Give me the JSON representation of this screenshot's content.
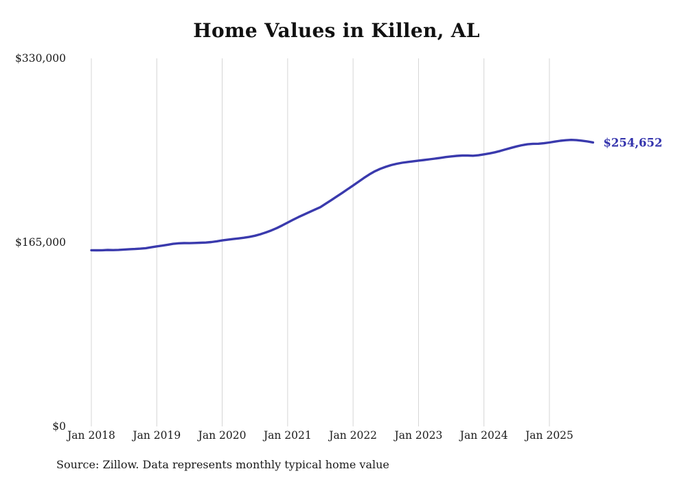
{
  "chart_data": {
    "type": "line",
    "title": "Home Values in Killen, AL",
    "x_start": "Jan 2018",
    "x_frequency": "monthly",
    "x_tick_labels": [
      "Jan 2018",
      "Jan 2019",
      "Jan 2020",
      "Jan 2021",
      "Jan 2022",
      "Jan 2023",
      "Jan 2024",
      "Jan 2025"
    ],
    "x_tick_month_indices": [
      0,
      12,
      24,
      36,
      48,
      60,
      72,
      84
    ],
    "values": [
      158000,
      157900,
      158000,
      158200,
      158100,
      158300,
      158600,
      158900,
      159100,
      159400,
      159800,
      160600,
      161400,
      162100,
      162900,
      163700,
      164200,
      164400,
      164300,
      164500,
      164700,
      164900,
      165300,
      166000,
      166800,
      167400,
      168000,
      168600,
      169200,
      170000,
      171000,
      172300,
      173900,
      175700,
      177800,
      180200,
      182800,
      185300,
      187700,
      190000,
      192200,
      194400,
      196600,
      199700,
      202900,
      206100,
      209400,
      212700,
      216000,
      219400,
      222800,
      226000,
      228800,
      231000,
      232800,
      234300,
      235500,
      236400,
      237100,
      237700,
      238300,
      238900,
      239500,
      240100,
      240800,
      241500,
      242100,
      242600,
      242900,
      242900,
      242700,
      243100,
      243900,
      244800,
      245800,
      247000,
      248400,
      249800,
      251100,
      252200,
      253000,
      253400,
      253500,
      253900,
      254600,
      255400,
      256100,
      256600,
      256900,
      256700,
      256200,
      255500,
      254652
    ],
    "ylim": [
      0,
      330000
    ],
    "y_tick_values": [
      330000,
      165000,
      0
    ],
    "y_tick_labels": [
      "$330,000",
      "$165,000",
      "$0"
    ],
    "end_label": "$254,652",
    "latest_value": 254652,
    "line_color": "#3a3aad",
    "end_label_color": "#3434ad",
    "grid_color": "#d4d4d4",
    "grid": "vertical-only",
    "legend": "none"
  },
  "footer": {
    "source": "Source: Zillow. Data represents monthly typical home value"
  }
}
